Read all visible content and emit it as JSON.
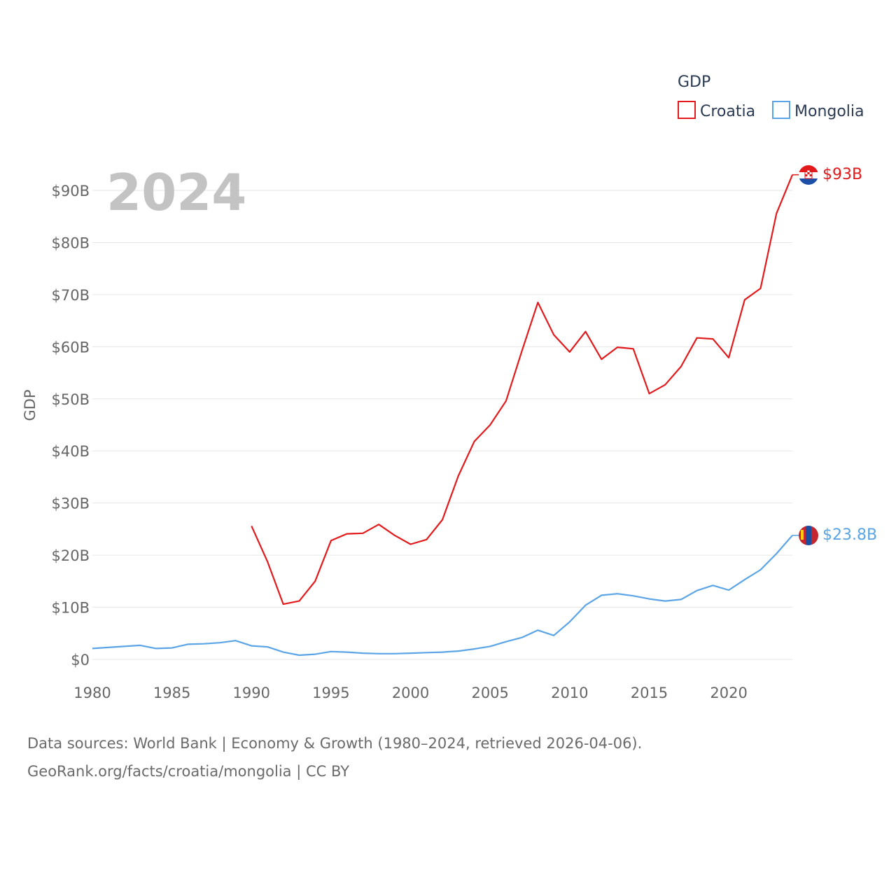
{
  "colors": {
    "croatia": "#e31a1c",
    "mongolia": "#5ba4e5",
    "grid": "#e6e6e6",
    "year": "#c3c3c3"
  },
  "year_label": "2024",
  "legend": {
    "title": "GDP",
    "items": [
      "Croatia",
      "Mongolia"
    ]
  },
  "footer": {
    "line1": "Data sources: World Bank | Economy & Growth (1980–2024, retrieved 2026-04-06).",
    "line2": "GeoRank.org/facts/croatia/mongolia | CC BY"
  },
  "chart_data": {
    "type": "line",
    "title": "",
    "xlabel": "",
    "ylabel": "GDP",
    "xlim": [
      1980,
      2024
    ],
    "ylim": [
      0,
      90
    ],
    "y_unit": "B USD",
    "x_ticks": [
      1980,
      1985,
      1990,
      1995,
      2000,
      2005,
      2010,
      2015,
      2020
    ],
    "y_ticks": [
      0,
      10,
      20,
      30,
      40,
      50,
      60,
      70,
      80,
      90
    ],
    "y_tick_labels": [
      "$0",
      "$10B",
      "$20B",
      "$30B",
      "$40B",
      "$50B",
      "$60B",
      "$70B",
      "$80B",
      "$90B"
    ],
    "grid": true,
    "legend_position": "top-right",
    "series": [
      {
        "name": "Croatia",
        "color": "#e31a1c",
        "end_label": "$93B",
        "x": [
          1990,
          1991,
          1992,
          1993,
          1994,
          1995,
          1996,
          1997,
          1998,
          1999,
          2000,
          2001,
          2002,
          2003,
          2004,
          2005,
          2006,
          2007,
          2008,
          2009,
          2010,
          2011,
          2012,
          2013,
          2014,
          2015,
          2016,
          2017,
          2018,
          2019,
          2020,
          2021,
          2022,
          2023,
          2024
        ],
        "values": [
          25.6,
          18.8,
          10.6,
          11.2,
          15.0,
          22.8,
          24.1,
          24.2,
          25.9,
          23.8,
          22.1,
          23.0,
          26.8,
          35.2,
          41.8,
          45.0,
          49.6,
          59.2,
          68.5,
          62.3,
          59.0,
          62.9,
          57.6,
          59.9,
          59.6,
          51.0,
          52.7,
          56.2,
          61.7,
          61.5,
          57.9,
          69.0,
          71.2,
          85.6,
          93.0
        ]
      },
      {
        "name": "Mongolia",
        "color": "#5ba4e5",
        "end_label": "$23.8B",
        "x": [
          1980,
          1981,
          1982,
          1983,
          1984,
          1985,
          1986,
          1987,
          1988,
          1989,
          1990,
          1991,
          1992,
          1993,
          1994,
          1995,
          1996,
          1997,
          1998,
          1999,
          2000,
          2001,
          2002,
          2003,
          2004,
          2005,
          2006,
          2007,
          2008,
          2009,
          2010,
          2011,
          2012,
          2013,
          2014,
          2015,
          2016,
          2017,
          2018,
          2019,
          2020,
          2021,
          2022,
          2023,
          2024
        ],
        "values": [
          2.1,
          2.3,
          2.5,
          2.7,
          2.1,
          2.2,
          2.9,
          3.0,
          3.2,
          3.6,
          2.6,
          2.4,
          1.4,
          0.8,
          1.0,
          1.5,
          1.4,
          1.2,
          1.1,
          1.1,
          1.2,
          1.3,
          1.4,
          1.6,
          2.0,
          2.5,
          3.4,
          4.2,
          5.6,
          4.6,
          7.2,
          10.4,
          12.3,
          12.6,
          12.2,
          11.6,
          11.2,
          11.5,
          13.2,
          14.2,
          13.3,
          15.3,
          17.2,
          20.3,
          23.8
        ]
      }
    ]
  }
}
